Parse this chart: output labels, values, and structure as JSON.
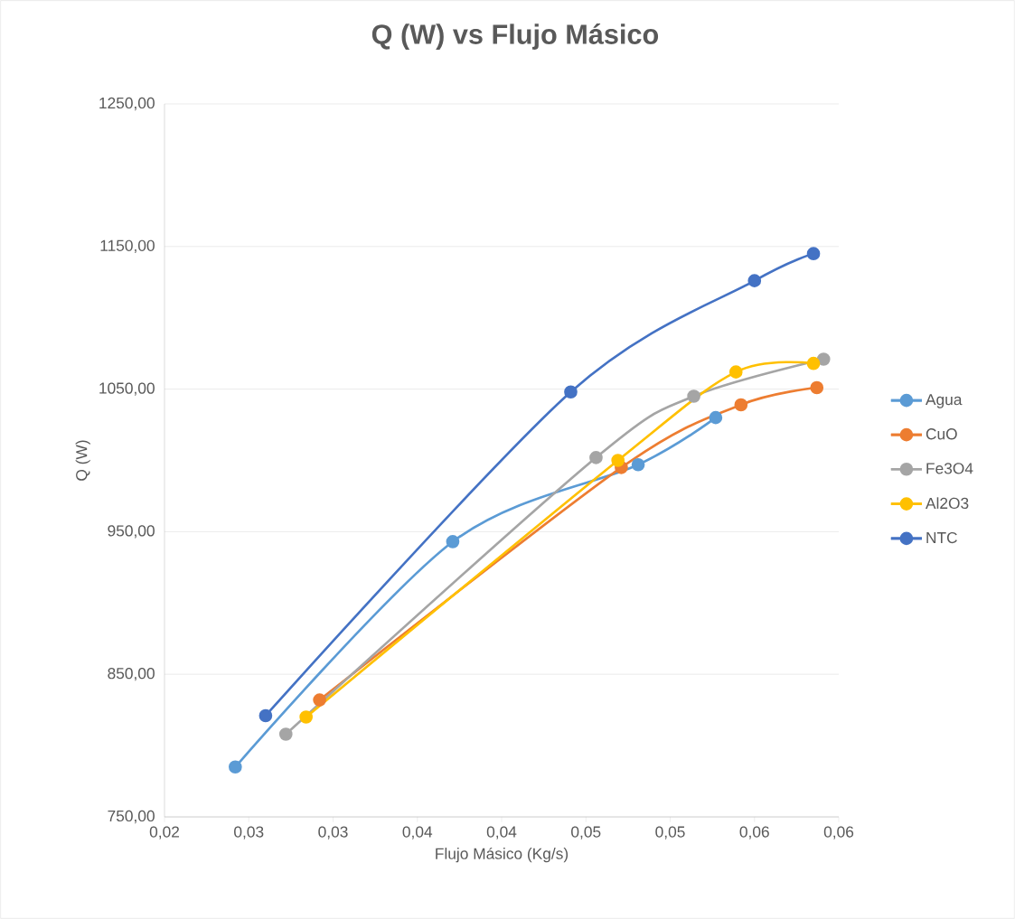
{
  "chart_data": {
    "type": "line",
    "title": "Q (W) vs Flujo Másico",
    "xlabel": "Flujo Másico (Kg/s)",
    "ylabel": "Q (W)",
    "xlim": [
      0.02,
      0.06
    ],
    "ylim": [
      750,
      1250
    ],
    "xticks": [
      {
        "value": 0.02,
        "label": "0,02"
      },
      {
        "value": 0.025,
        "label": "0,03"
      },
      {
        "value": 0.03,
        "label": "0,03"
      },
      {
        "value": 0.035,
        "label": "0,04"
      },
      {
        "value": 0.04,
        "label": "0,04"
      },
      {
        "value": 0.045,
        "label": "0,05"
      },
      {
        "value": 0.05,
        "label": "0,05"
      },
      {
        "value": 0.055,
        "label": "0,06"
      },
      {
        "value": 0.06,
        "label": "0,06"
      }
    ],
    "yticks": [
      {
        "value": 750,
        "label": "750,00"
      },
      {
        "value": 850,
        "label": "850,00"
      },
      {
        "value": 950,
        "label": "950,00"
      },
      {
        "value": 1050,
        "label": "1050,00"
      },
      {
        "value": 1150,
        "label": "1150,00"
      },
      {
        "value": 1250,
        "label": "1250,00"
      }
    ],
    "grid": "y",
    "legend": "right",
    "marker": "circle",
    "line_style": "solid",
    "series": [
      {
        "name": "Agua",
        "color": "#5b9bd5",
        "x": [
          0.0242,
          0.0371,
          0.0481,
          0.0527
        ],
        "values": [
          785,
          943,
          997,
          1030
        ]
      },
      {
        "name": "CuO",
        "color": "#ed7d31",
        "x": [
          0.0292,
          0.0471,
          0.0542,
          0.0587
        ],
        "values": [
          832,
          995,
          1039,
          1051
        ]
      },
      {
        "name": "Fe3O4",
        "color": "#a5a5a5",
        "x": [
          0.0272,
          0.0456,
          0.0514,
          0.0591
        ],
        "values": [
          808,
          1002,
          1045,
          1071
        ]
      },
      {
        "name": "Al2O3",
        "color": "#ffc000",
        "x": [
          0.0284,
          0.0469,
          0.0539,
          0.0585
        ],
        "values": [
          820,
          1000,
          1062,
          1068
        ]
      },
      {
        "name": "NTC",
        "color": "#4472c4",
        "x": [
          0.026,
          0.0441,
          0.055,
          0.0585
        ],
        "values": [
          821,
          1048,
          1126,
          1145
        ]
      }
    ]
  }
}
